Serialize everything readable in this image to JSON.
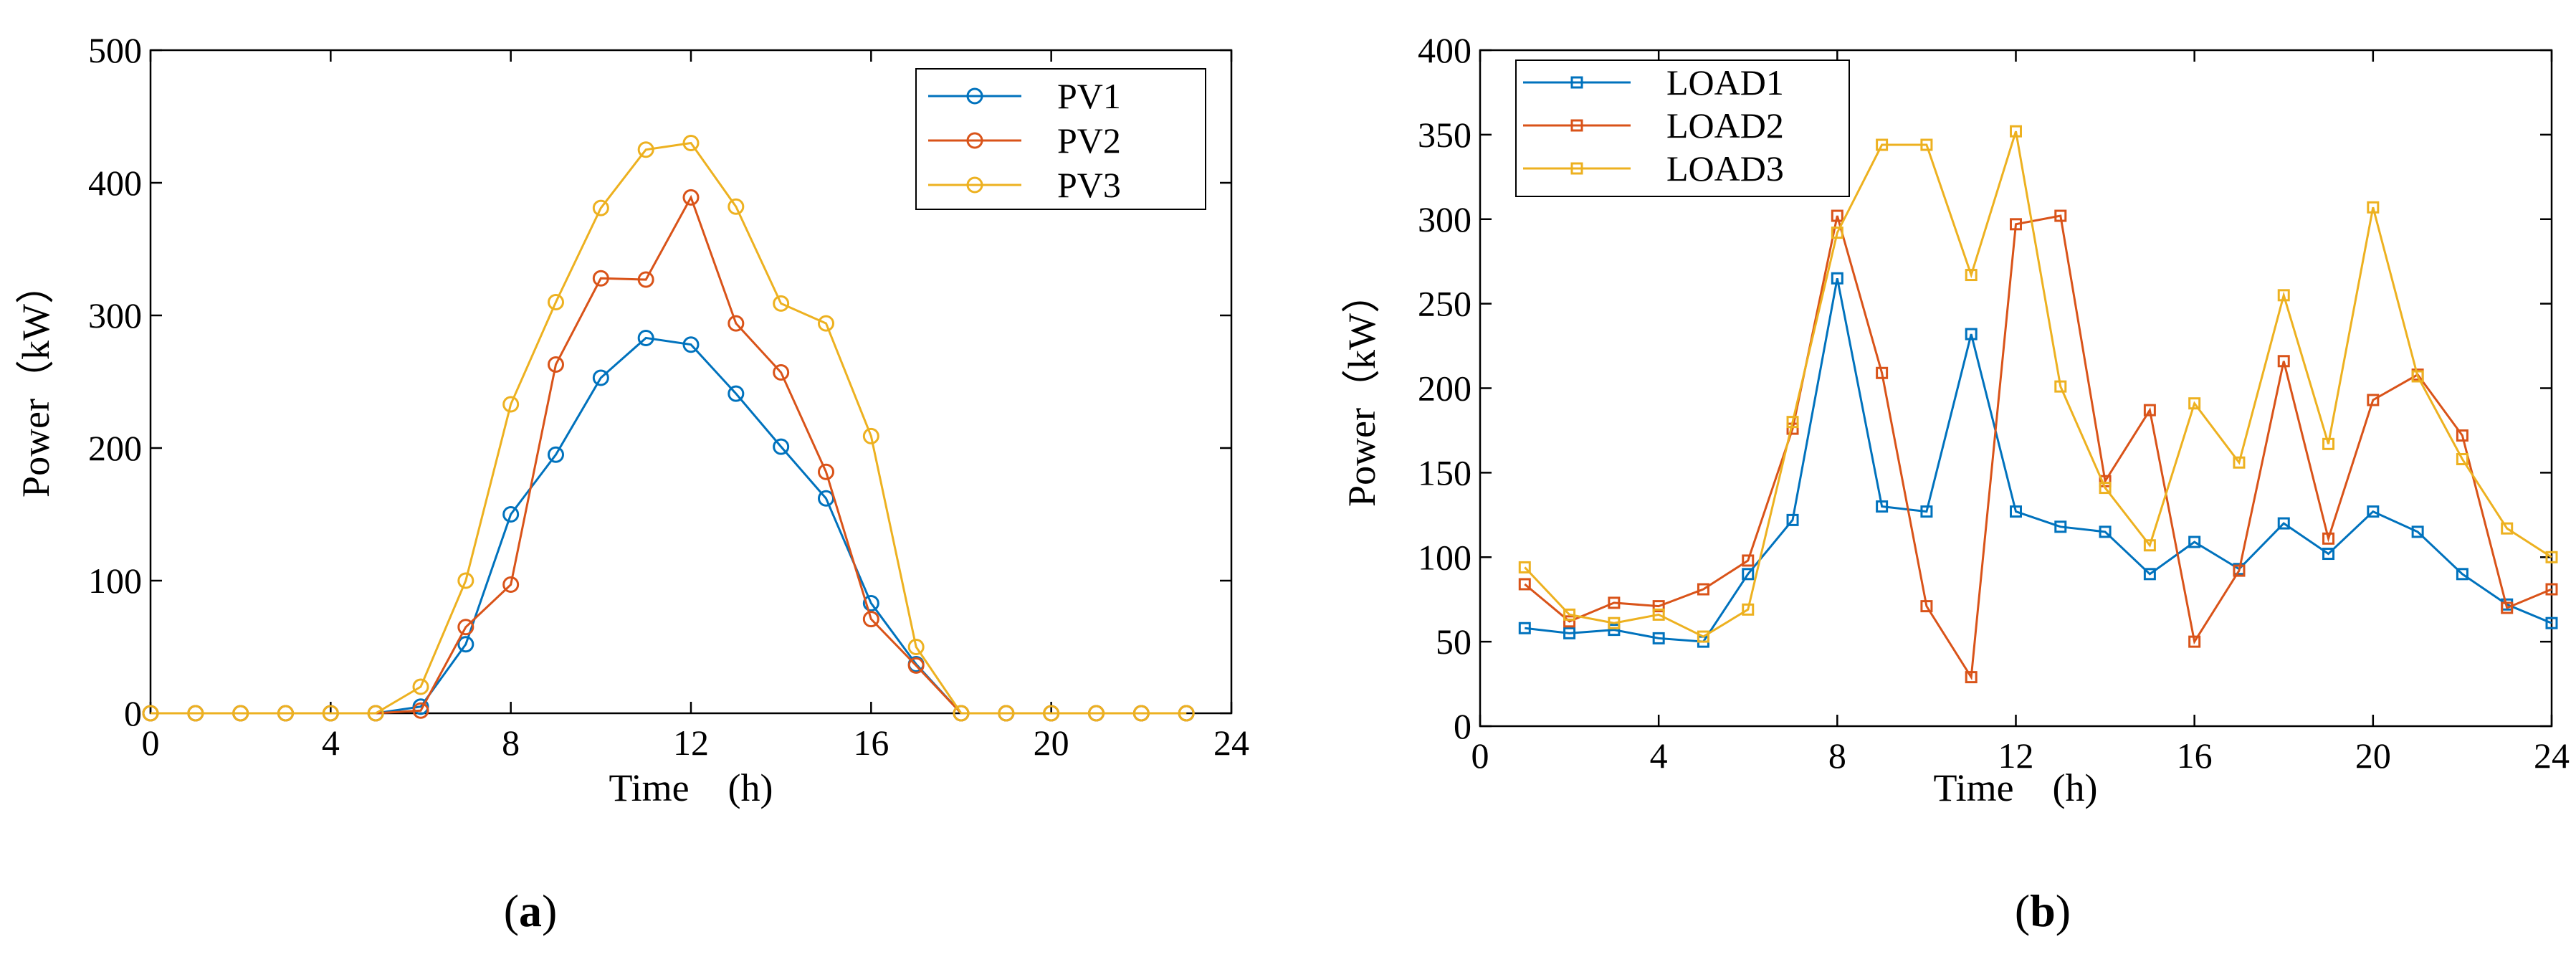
{
  "chart_data": [
    {
      "type": "line",
      "caption_open": "(",
      "caption_letter": "a",
      "caption_close": ")",
      "xlabel": "Time　(h)",
      "ylabel": "Power（kW）",
      "xlim": [
        0,
        24
      ],
      "ylim": [
        0,
        500
      ],
      "xticks": [
        0,
        4,
        8,
        12,
        16,
        20,
        24
      ],
      "yticks": [
        0,
        100,
        200,
        300,
        400,
        500
      ],
      "marker": "circle",
      "legend_position": "top-right",
      "x": [
        0,
        1,
        2,
        3,
        4,
        5,
        6,
        7,
        8,
        9,
        10,
        11,
        12,
        13,
        14,
        15,
        16,
        17,
        18,
        19,
        20,
        21,
        22,
        23
      ],
      "series": [
        {
          "name": "PV1",
          "color": "#0072BD",
          "values": [
            0,
            0,
            0,
            0,
            0,
            0,
            5,
            52,
            150,
            195,
            253,
            283,
            278,
            241,
            201,
            162,
            83,
            37,
            0,
            0,
            0,
            0,
            0,
            0
          ]
        },
        {
          "name": "PV2",
          "color": "#D95319",
          "values": [
            0,
            0,
            0,
            0,
            0,
            0,
            2,
            65,
            97,
            263,
            328,
            327,
            389,
            294,
            257,
            182,
            71,
            36,
            0,
            0,
            0,
            0,
            0,
            0
          ]
        },
        {
          "name": "PV3",
          "color": "#EDB120",
          "values": [
            0,
            0,
            0,
            0,
            0,
            0,
            20,
            100,
            233,
            310,
            381,
            425,
            430,
            382,
            309,
            294,
            209,
            50,
            0,
            0,
            0,
            0,
            0,
            0
          ]
        }
      ]
    },
    {
      "type": "line",
      "caption_open": "(",
      "caption_letter": "b",
      "caption_close": ")",
      "xlabel": "Time　(h)",
      "ylabel": "Power（kW）",
      "xlim": [
        0,
        24
      ],
      "ylim": [
        0,
        400
      ],
      "xticks": [
        0,
        4,
        8,
        12,
        16,
        20,
        24
      ],
      "yticks": [
        0,
        50,
        100,
        150,
        200,
        250,
        300,
        350,
        400
      ],
      "marker": "square",
      "legend_position": "top-left",
      "x": [
        1,
        2,
        3,
        4,
        5,
        6,
        7,
        8,
        9,
        10,
        11,
        12,
        13,
        14,
        15,
        16,
        17,
        18,
        19,
        20,
        21,
        22,
        23,
        24
      ],
      "series": [
        {
          "name": "LOAD1",
          "color": "#0072BD",
          "values": [
            58,
            55,
            57,
            52,
            50,
            90,
            122,
            265,
            130,
            127,
            232,
            127,
            118,
            115,
            90,
            109,
            93,
            120,
            102,
            127,
            115,
            90,
            72,
            61
          ]
        },
        {
          "name": "LOAD2",
          "color": "#D95319",
          "values": [
            84,
            62,
            73,
            71,
            81,
            98,
            176,
            302,
            209,
            71,
            29,
            297,
            302,
            145,
            187,
            50,
            92,
            216,
            111,
            193,
            208,
            172,
            70,
            81
          ]
        },
        {
          "name": "LOAD3",
          "color": "#EDB120",
          "values": [
            94,
            66,
            61,
            66,
            53,
            69,
            180,
            292,
            344,
            344,
            267,
            352,
            201,
            141,
            107,
            191,
            156,
            255,
            167,
            307,
            207,
            158,
            117,
            100
          ]
        }
      ]
    }
  ]
}
